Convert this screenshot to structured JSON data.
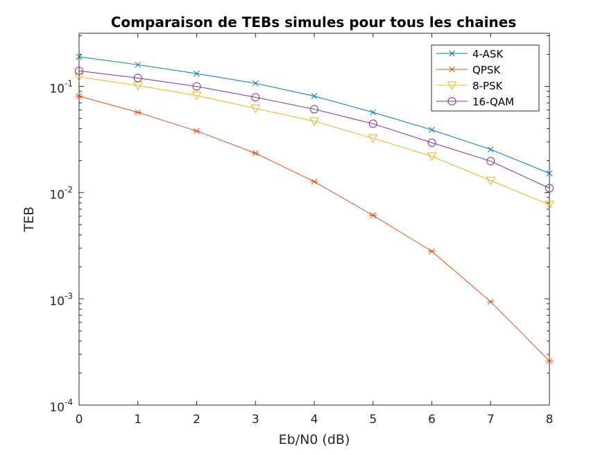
{
  "chart_data": {
    "type": "line",
    "title": "Comparaison de TEBs simules pour tous les chaines",
    "xlabel": "Eb/N0 (dB)",
    "ylabel": "TEB",
    "x": [
      0,
      1,
      2,
      3,
      4,
      5,
      6,
      7,
      8
    ],
    "xlim": [
      0,
      8
    ],
    "ylim": [
      0.0001,
      0.2
    ],
    "yscale": "log",
    "grid": false,
    "legend_position": "top-right",
    "x_ticks": [
      "0",
      "1",
      "2",
      "3",
      "4",
      "5",
      "6",
      "7",
      "8"
    ],
    "y_ticks": [
      {
        "base": "10",
        "exp": "-4",
        "value": 0.0001
      },
      {
        "base": "10",
        "exp": "-3",
        "value": 0.001
      },
      {
        "base": "10",
        "exp": "-2",
        "value": 0.01
      },
      {
        "base": "10",
        "exp": "-1",
        "value": 0.1
      }
    ],
    "series": [
      {
        "name": "4-ASK",
        "color": "#0072BD",
        "marker": "x",
        "values": [
          0.19,
          0.16,
          0.132,
          0.107,
          0.081,
          0.057,
          0.039,
          0.0255,
          0.0152
        ]
      },
      {
        "name": "QPSK",
        "color": "#D95319",
        "marker": "asterisk",
        "values": [
          0.081,
          0.057,
          0.038,
          0.0235,
          0.0127,
          0.0061,
          0.0028,
          0.00094,
          0.00026
        ]
      },
      {
        "name": "8-PSK",
        "color": "#EDB120",
        "marker": "triangle-down",
        "values": [
          0.123,
          0.102,
          0.082,
          0.062,
          0.047,
          0.0325,
          0.022,
          0.013,
          0.0077
        ]
      },
      {
        "name": "16-QAM",
        "color": "#7E2F8E",
        "marker": "circle",
        "values": [
          0.14,
          0.12,
          0.1,
          0.079,
          0.061,
          0.0445,
          0.0295,
          0.0198,
          0.011
        ]
      }
    ]
  }
}
